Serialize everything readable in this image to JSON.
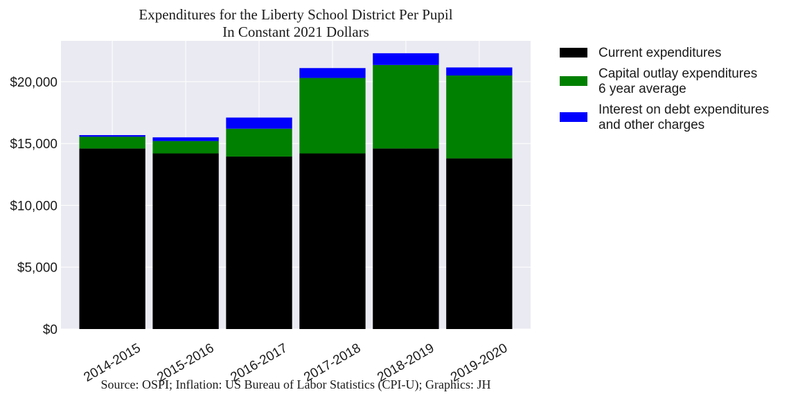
{
  "chart_data": {
    "type": "bar",
    "stacked": true,
    "title": "Expenditures for the Liberty School District Per Pupil",
    "subtitle": "In Constant 2021 Dollars",
    "source": "Source: OSPI; Inflation: US Bureau of Labor Statistics (CPI-U); Graphics: JH",
    "categories": [
      "2014-2015",
      "2015-2016",
      "2016-2017",
      "2017-2018",
      "2018-2019",
      "2019-2020"
    ],
    "series": [
      {
        "name": "Current expenditures",
        "color": "#000000",
        "values": [
          14600,
          14200,
          13950,
          14200,
          14600,
          13800
        ]
      },
      {
        "name_lines": [
          "Capital outlay expenditures",
          "6 year average"
        ],
        "color": "#008000",
        "values": [
          950,
          1000,
          2250,
          6100,
          6750,
          6700
        ]
      },
      {
        "name_lines": [
          "Interest on debt expenditures",
          "and other charges"
        ],
        "color": "#0000ff",
        "values": [
          130,
          300,
          900,
          800,
          950,
          650
        ]
      }
    ],
    "ylim": [
      0,
      23300
    ],
    "yticks": [
      0,
      5000,
      10000,
      15000,
      20000
    ],
    "ytick_labels": [
      "$0",
      "$5,000",
      "$10,000",
      "$15,000",
      "$20,000"
    ],
    "grid": true,
    "legend_position": "outside-right"
  }
}
